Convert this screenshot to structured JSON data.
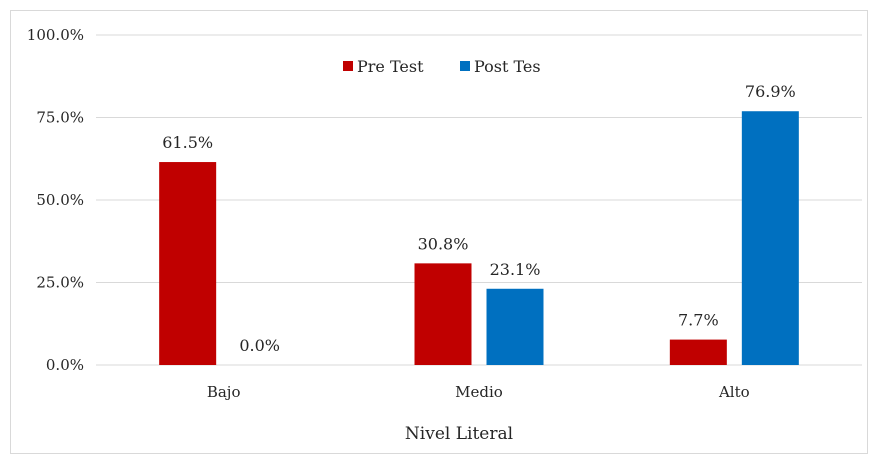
{
  "chart_data": {
    "type": "bar",
    "categories": [
      "Bajo",
      "Medio",
      "Alto"
    ],
    "series": [
      {
        "name": "Pre Test",
        "values": [
          61.5,
          30.8,
          7.7
        ],
        "labels": [
          "61.5%",
          "30.8%",
          "7.7%"
        ],
        "color": "#c00000"
      },
      {
        "name": "Post Tes",
        "values": [
          0.0,
          23.1,
          76.9
        ],
        "labels": [
          "0.0%",
          "23.1%",
          "76.9%"
        ],
        "color": "#0070c0"
      }
    ],
    "yticks": [
      0,
      25,
      50,
      75,
      100
    ],
    "ytick_labels": [
      "0.0%",
      "25.0%",
      "50.0%",
      "75.0%",
      "100.0%"
    ],
    "ylim": [
      0,
      100
    ],
    "xlabel": "Nivel Literal",
    "ylabel": "",
    "title": "",
    "grid": true,
    "legend_position": "top-center",
    "gridline_color": "#d9d9d9"
  }
}
